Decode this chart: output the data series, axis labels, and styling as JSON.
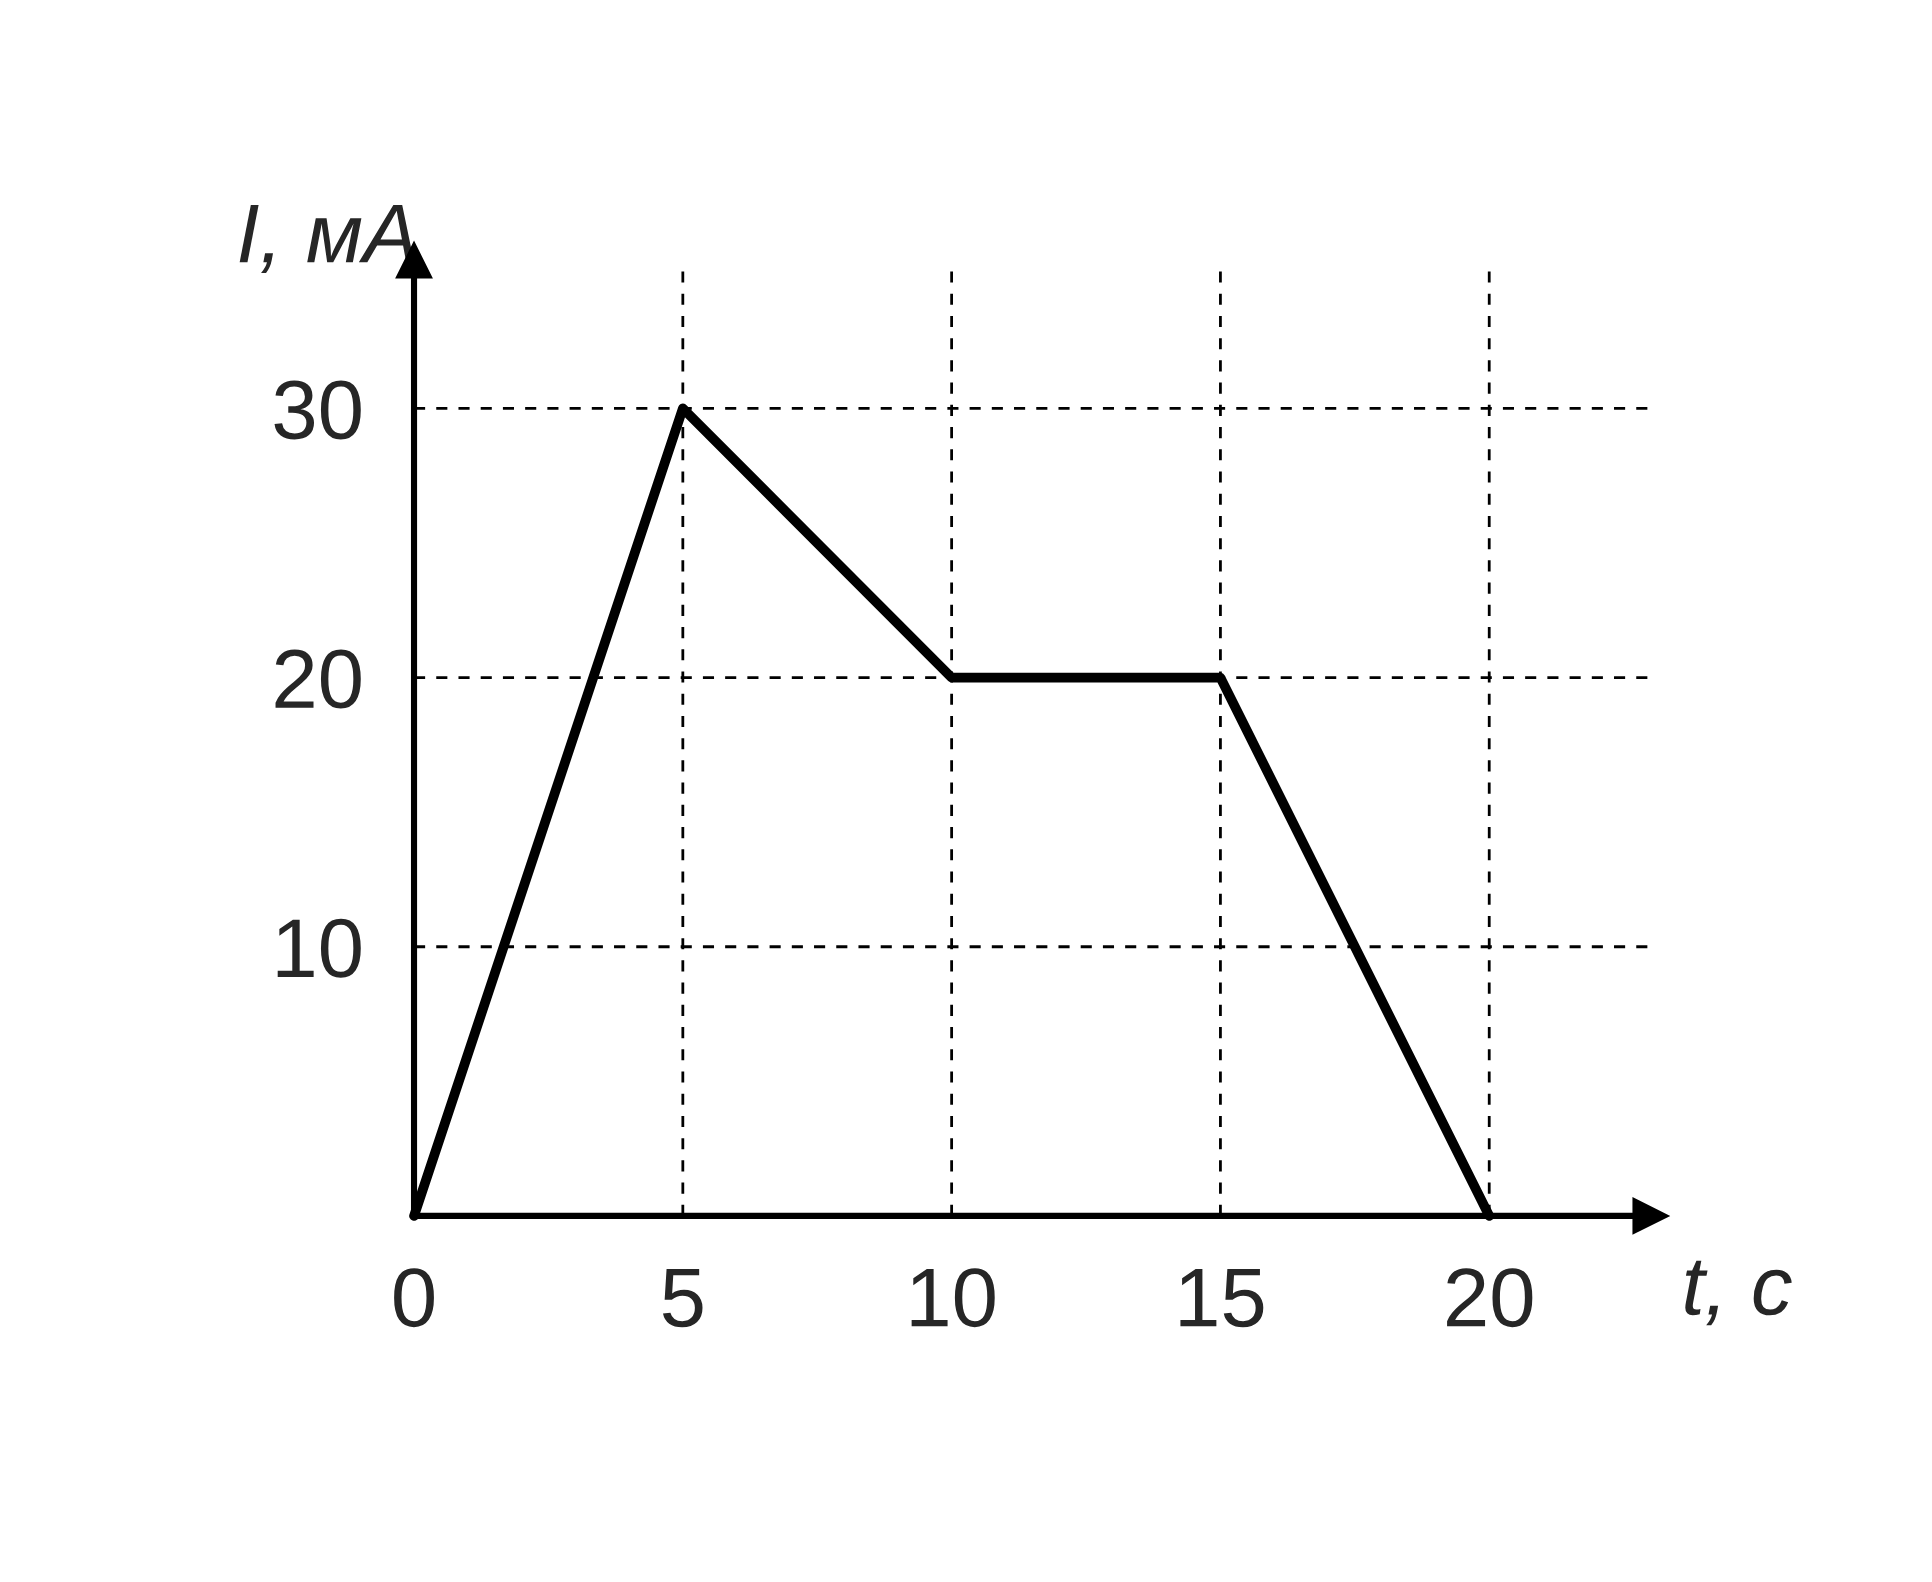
{
  "chart_data": {
    "type": "line",
    "xlabel": "t, с",
    "ylabel": "I, мА",
    "x": [
      0,
      5,
      10,
      15,
      20
    ],
    "series": [
      {
        "color": "#000000",
        "values": [
          0,
          30,
          20,
          20,
          0
        ]
      }
    ],
    "xlim": [
      0,
      23
    ],
    "ylim": [
      0,
      35.5
    ],
    "xticks": [
      0,
      5,
      10,
      15,
      20
    ],
    "yticks": [
      10,
      20,
      30
    ],
    "grid": true,
    "marker": "none",
    "line_style": "solid"
  }
}
